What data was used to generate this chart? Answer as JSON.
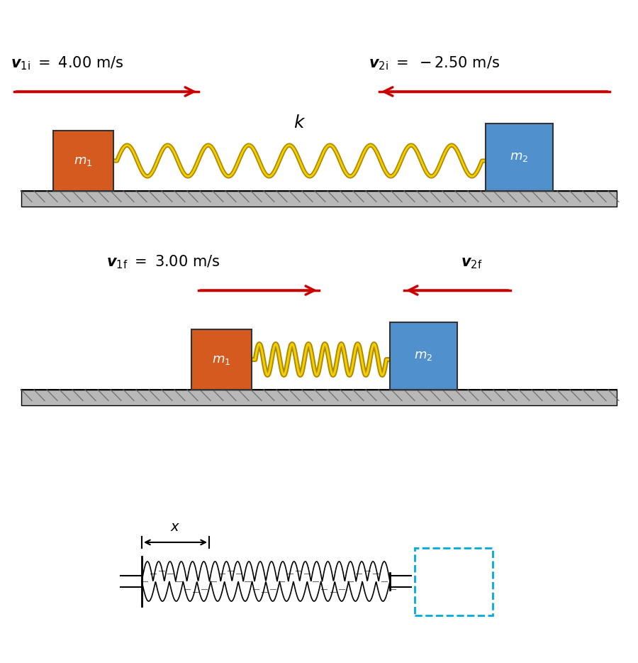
{
  "bg_color": "#ffffff",
  "fig_width": 9.0,
  "fig_height": 9.34,
  "panel1": {
    "v1i_text": "$\\boldsymbol{v}_{\\mathbf{1i}} = 4.00$ m/s",
    "v2i_text": "$\\boldsymbol{v}_{\\mathbf{2i}} = -2.50$ m/s",
    "k_label": "$k$",
    "m1_label": "$m_1$",
    "m2_label": "$m_2$",
    "block1_color": [
      "#d45a20",
      "#e87040",
      "#c04010"
    ],
    "block2_color": [
      "#5090d0",
      "#70b0e8",
      "#3070b0"
    ],
    "spring_color_outer": "#c8a000",
    "spring_color_inner": "#e8c000",
    "floor_color": "#b0b0b0",
    "arrow_color": "#cc0000"
  },
  "panel2": {
    "v1f_text": "$\\boldsymbol{v}_{\\mathbf{1f}} = 3.00$ m/s",
    "v2f_text": "$\\boldsymbol{v}_{\\mathbf{2f}}$",
    "m1_label": "$m_1$",
    "m2_label": "$m_2$",
    "block1_color": [
      "#d45a20",
      "#e87040",
      "#c04010"
    ],
    "block2_color": [
      "#5090d0",
      "#70b0e8",
      "#3070b0"
    ],
    "spring_color_outer": "#c8a000",
    "spring_color_inner": "#e8c000",
    "floor_color": "#b0b0b0",
    "arrow_color": "#cc0000"
  },
  "panel3": {
    "x_label": "$x$",
    "spring_color": "#000000",
    "box_color": "#00aadd",
    "floor_color": "#000000"
  }
}
